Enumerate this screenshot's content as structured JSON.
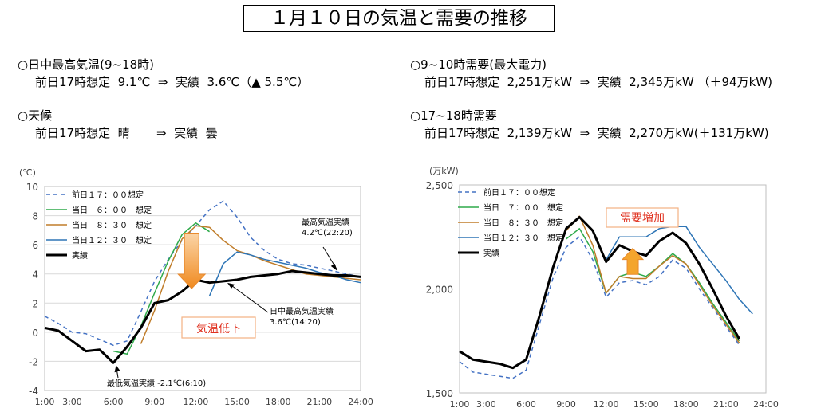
{
  "title": "１月１０日の気温と需要の推移",
  "info": {
    "left": [
      {
        "head": "○日中最高気温(9~18時)",
        "detail": "前日17時想定  9.1℃  ⇒  実績  3.6℃（▲ 5.5℃）"
      },
      {
        "head": "○天候",
        "detail": "前日17時想定  晴       ⇒  実績  曇"
      }
    ],
    "right": [
      {
        "head": "○9~10時需要(最大電力)",
        "detail": "前日17時想定  2,251万kW  ⇒  実績  2,345万kW （＋94万kW)"
      },
      {
        "head": "○17~18時需要",
        "detail": "前日17時想定  2,139万kW  ⇒  実績  2,270万kW(＋131万kW)"
      }
    ]
  },
  "chart_data": [
    {
      "type": "line",
      "ylabel": "(℃)",
      "ylim": [
        -4,
        10
      ],
      "yticks": [
        "-4",
        "-2",
        "0",
        "2",
        "4",
        "6",
        "8",
        "10"
      ],
      "xticks": [
        "1:00",
        "3:00",
        "6:00",
        "9:00",
        "12:00",
        "15:00",
        "18:00",
        "21:00",
        "24:00"
      ],
      "x": [
        1,
        2,
        3,
        4,
        5,
        6,
        7,
        8,
        9,
        10,
        11,
        12,
        13,
        14,
        15,
        16,
        17,
        18,
        19,
        20,
        21,
        22,
        23,
        24
      ],
      "legend_position": "top-left",
      "series": [
        {
          "name": "前日１７：００想定",
          "color": "#4472c4",
          "dash": true,
          "values": [
            1.1,
            0.6,
            0.0,
            -0.1,
            -0.5,
            -0.9,
            -0.6,
            1.4,
            3.5,
            5.0,
            6.3,
            7.3,
            8.4,
            9.0,
            7.9,
            6.5,
            5.6,
            5.0,
            4.7,
            4.6,
            4.4,
            4.2,
            4.0,
            3.8
          ]
        },
        {
          "name": "当日　６：００　想定",
          "color": "#2eaa4a",
          "dash": false,
          "values": [
            null,
            null,
            null,
            null,
            null,
            -1.3,
            -1.5,
            0.4,
            2.7,
            4.9,
            6.7,
            7.5,
            6.9,
            null,
            null,
            null,
            null,
            null,
            null,
            null,
            null,
            null,
            null,
            null
          ]
        },
        {
          "name": "当日　８：３０　想定",
          "color": "#c07d2a",
          "dash": false,
          "values": [
            null,
            null,
            null,
            null,
            null,
            null,
            null,
            -0.8,
            1.5,
            4.2,
            6.4,
            7.3,
            7.2,
            6.3,
            5.6,
            5.3,
            4.9,
            4.6,
            4.3,
            4.0,
            3.9,
            3.8,
            3.7,
            3.6
          ]
        },
        {
          "name": "当日１２：３０　想定",
          "color": "#2e75b6",
          "dash": false,
          "values": [
            null,
            null,
            null,
            null,
            null,
            null,
            null,
            null,
            null,
            null,
            null,
            null,
            2.5,
            4.7,
            5.5,
            5.3,
            5.0,
            4.8,
            4.6,
            4.4,
            4.1,
            3.9,
            3.6,
            3.4
          ]
        },
        {
          "name": "実績",
          "color": "#000000",
          "dash": false,
          "bold": true,
          "values": [
            0.3,
            0.1,
            -0.6,
            -1.3,
            -1.2,
            -2.1,
            -1.0,
            0.3,
            2.0,
            2.2,
            2.8,
            3.6,
            3.4,
            3.5,
            3.6,
            3.8,
            3.9,
            4.0,
            4.2,
            4.1,
            4.0,
            3.9,
            3.9,
            3.8
          ]
        }
      ],
      "annotations": {
        "max": "最高気温実績\n4.2℃(22:20)",
        "daymax": "日中最高気温実績\n3.6℃(14:20)",
        "min": "最低気温実績 -2.1℃(6:10)",
        "callout": "気温低下"
      }
    },
    {
      "type": "line",
      "ylabel": "(万kW)",
      "ylim": [
        1500,
        2500
      ],
      "yticks": [
        "1,500",
        "2,000",
        "2,500"
      ],
      "xticks": [
        "1:00",
        "3:00",
        "6:00",
        "9:00",
        "12:00",
        "15:00",
        "18:00",
        "21:00",
        "24:00"
      ],
      "x": [
        1,
        2,
        3,
        4,
        5,
        6,
        7,
        8,
        9,
        10,
        11,
        12,
        13,
        14,
        15,
        16,
        17,
        18,
        19,
        20,
        21,
        22,
        23,
        24
      ],
      "legend_position": "top-left",
      "series": [
        {
          "name": "前日１７：００想定",
          "color": "#4472c4",
          "dash": true,
          "values": [
            1650,
            1600,
            1590,
            1580,
            1570,
            1610,
            1830,
            2050,
            2200,
            2251,
            2140,
            1960,
            2030,
            2040,
            2020,
            2060,
            2139,
            2100,
            2000,
            1910,
            1820,
            1730,
            null,
            null
          ]
        },
        {
          "name": "当日　７：００　想定",
          "color": "#2eaa4a",
          "dash": false,
          "values": [
            null,
            null,
            null,
            null,
            null,
            null,
            null,
            null,
            2240,
            2290,
            2180,
            1980,
            2060,
            2080,
            2060,
            2110,
            2170,
            2120,
            2030,
            1930,
            1840,
            1750,
            null,
            null
          ]
        },
        {
          "name": "当日　８：３０　想定",
          "color": "#c07d2a",
          "dash": false,
          "values": [
            null,
            null,
            null,
            null,
            null,
            null,
            null,
            null,
            2280,
            2350,
            2210,
            1980,
            2060,
            2050,
            2050,
            2110,
            2160,
            2120,
            2020,
            1920,
            1830,
            1740,
            null,
            null
          ]
        },
        {
          "name": "当日１２：３０　想定",
          "color": "#2e75b6",
          "dash": false,
          "values": [
            null,
            null,
            null,
            null,
            null,
            null,
            null,
            null,
            null,
            null,
            null,
            2140,
            2250,
            2250,
            2250,
            2290,
            2300,
            2300,
            2200,
            2120,
            2040,
            1950,
            1880,
            null
          ]
        },
        {
          "name": "実績",
          "color": "#000000",
          "dash": false,
          "bold": true,
          "values": [
            1700,
            1660,
            1650,
            1640,
            1620,
            1660,
            1870,
            2100,
            2290,
            2345,
            2280,
            2130,
            2210,
            2180,
            2160,
            2230,
            2270,
            2220,
            2120,
            2000,
            1870,
            1760,
            null,
            null
          ]
        }
      ],
      "annotations": {
        "callout": "需要増加"
      }
    }
  ]
}
